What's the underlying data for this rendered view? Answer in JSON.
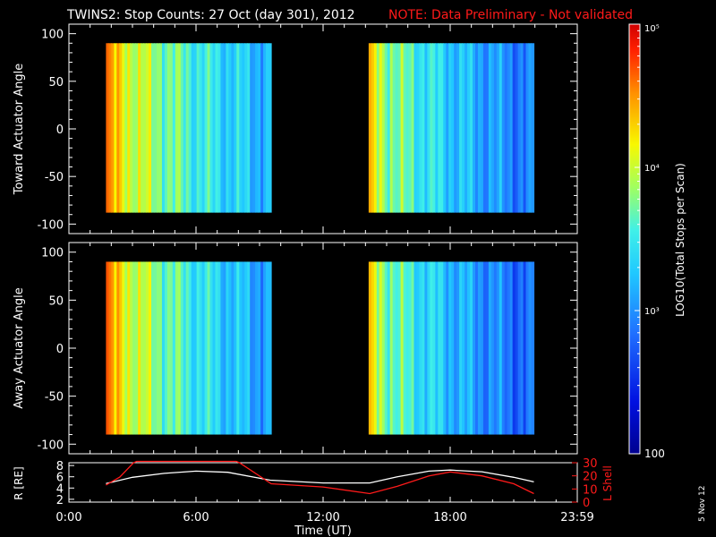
{
  "title": "TWINS2: Stop Counts: 27 Oct (day 301), 2012",
  "note": "NOTE: Data Preliminary - Not validated",
  "side_date": "5 Nov 12",
  "colors": {
    "background": "#000000",
    "axes": "#ffffff",
    "note": "#ff1a1a",
    "r_line": "#ffffff",
    "l_line": "#ff1a1a"
  },
  "colorbar": {
    "label": "LOG10(Total Stops per Scan)",
    "ticks": [
      {
        "value": 100,
        "label": "100"
      },
      {
        "value": 1000,
        "label": "10³"
      },
      {
        "value": 10000,
        "label": "10⁴"
      },
      {
        "value": 100000,
        "label": "10⁵"
      }
    ],
    "range": [
      100,
      100000
    ],
    "scale": "log"
  },
  "chart_data": [
    {
      "type": "heatmap",
      "id": "toward",
      "ylabel": "Toward Actuator Angle",
      "ylim": [
        -110,
        110
      ],
      "yticks": [
        100,
        50,
        0,
        -50,
        -100
      ],
      "xlim": [
        0,
        24
      ],
      "angle_range": [
        -88,
        90
      ],
      "segments": [
        {
          "start_h": 1.75,
          "end_h": 9.55,
          "log_start": 4.55,
          "log_end": 3.15
        },
        {
          "start_h": 14.15,
          "end_h": 21.95,
          "log_start": 4.25,
          "log_end": 2.85
        }
      ]
    },
    {
      "type": "heatmap",
      "id": "away",
      "ylabel": "Away Actuator Angle",
      "ylim": [
        -110,
        110
      ],
      "yticks": [
        100,
        50,
        0,
        -50,
        -100
      ],
      "xlim": [
        0,
        24
      ],
      "angle_range": [
        -90,
        90
      ],
      "segments": [
        {
          "start_h": 1.75,
          "end_h": 9.55,
          "log_start": 4.6,
          "log_end": 3.05
        },
        {
          "start_h": 14.15,
          "end_h": 21.95,
          "log_start": 4.2,
          "log_end": 2.75
        }
      ]
    },
    {
      "type": "line",
      "id": "orbit",
      "ylabel": "R [RE]",
      "y2label": "L Shell",
      "xlabel": "Time (UT)",
      "xlim": [
        0,
        24
      ],
      "xticks": [
        {
          "value": 0,
          "label": "0:00"
        },
        {
          "value": 6,
          "label": "6:00"
        },
        {
          "value": 12,
          "label": "12:00"
        },
        {
          "value": 18,
          "label": "18:00"
        },
        {
          "value": 24,
          "label": "23:59"
        }
      ],
      "ylim": [
        1.5,
        8.5
      ],
      "yticks": [
        8,
        6,
        4,
        2
      ],
      "y2lim": [
        0,
        30
      ],
      "y2ticks": [
        30,
        20,
        10,
        0
      ],
      "series": [
        {
          "axis": "left",
          "color": "#ffffff",
          "x": [
            1.75,
            3,
            4.5,
            6,
            7.5,
            9.5,
            12,
            14.2,
            15.5,
            17,
            18,
            19.5,
            21,
            21.95
          ],
          "y": [
            4.8,
            5.9,
            6.6,
            7.0,
            6.8,
            5.4,
            4.9,
            4.9,
            6.0,
            7.0,
            7.2,
            6.9,
            5.9,
            5.1
          ]
        },
        {
          "axis": "right",
          "color": "#ff1a1a",
          "x": [
            1.75,
            2.4,
            3.05,
            3.2,
            7.9,
            8.05,
            9.55,
            12,
            14.2,
            15.5,
            17,
            18,
            19.5,
            21,
            21.95
          ],
          "y": [
            13,
            19,
            30,
            31,
            31,
            30,
            14,
            11.5,
            6.5,
            12,
            20,
            23,
            20,
            14,
            6.5
          ]
        }
      ]
    }
  ]
}
